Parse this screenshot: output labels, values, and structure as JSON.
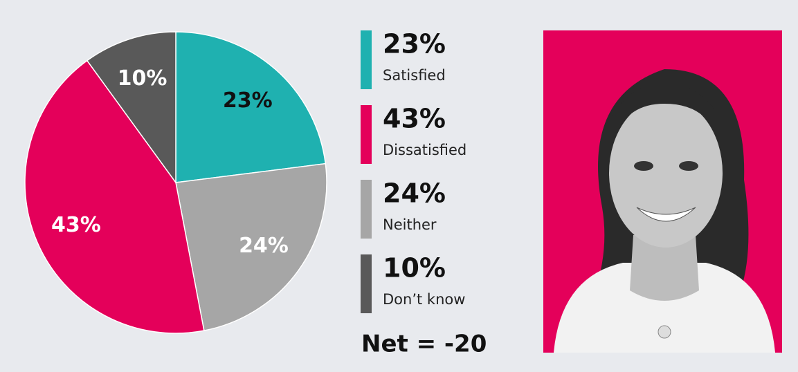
{
  "chart_data": {
    "type": "pie",
    "categories": [
      "Satisfied",
      "Neither",
      "Dissatisfied",
      "Don’t know"
    ],
    "values": [
      23,
      24,
      43,
      10
    ],
    "value_labels": [
      "23%",
      "24%",
      "43%",
      "10%"
    ],
    "colors": [
      "#1fb1b0",
      "#a6a6a6",
      "#e4005a",
      "#595959"
    ],
    "label_colors": [
      "#111111",
      "#ffffff",
      "#ffffff",
      "#ffffff"
    ],
    "annotation": "Net = -20"
  }
}
